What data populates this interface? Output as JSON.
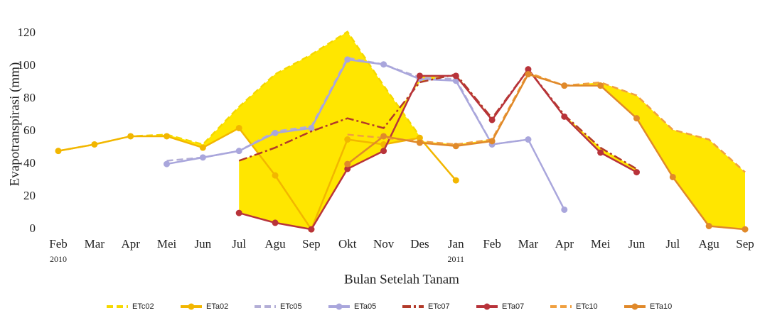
{
  "chart_data": {
    "type": "line",
    "y_label": "Evapotranspirasi (mm)",
    "x_label": "Bulan Setelah Tanam",
    "categories": [
      "Feb",
      "Mar",
      "Apr",
      "Mei",
      "Jun",
      "Jul",
      "Agu",
      "Sep",
      "Okt",
      "Nov",
      "Des",
      "Jan",
      "Feb",
      "Mar",
      "Apr",
      "Mei",
      "Jun",
      "Jul",
      "Agu",
      "Sep"
    ],
    "category_sublabels": [
      "2010",
      null,
      null,
      null,
      null,
      null,
      null,
      null,
      null,
      null,
      null,
      "2011",
      null,
      null,
      null,
      null,
      null,
      null,
      null,
      null
    ],
    "ylim": [
      -3,
      130
    ],
    "yticks": [
      0,
      20,
      40,
      60,
      80,
      100,
      120
    ],
    "grid": false,
    "legend": "bottom",
    "series": [
      {
        "name": "ETc02",
        "color": "#f5d800",
        "dash": "dashed",
        "marker": false,
        "fill": "#ffe600",
        "values": [
          48,
          52,
          57,
          58,
          52,
          75,
          95,
          107,
          121,
          88,
          57,
          null,
          null,
          null,
          null,
          null,
          null,
          null,
          null,
          null
        ]
      },
      {
        "name": "ETa02",
        "color": "#f2b600",
        "dash": "solid",
        "marker": true,
        "values": [
          48,
          52,
          57,
          57,
          50,
          62,
          33,
          0,
          55,
          52,
          56,
          30,
          null,
          null,
          null,
          null,
          null,
          null,
          null,
          null
        ]
      },
      {
        "name": "ETc05",
        "color": "#b3aed6",
        "dash": "dashed",
        "marker": false,
        "values": [
          null,
          null,
          null,
          42,
          44,
          48,
          60,
          63,
          105,
          101,
          93,
          92,
          52,
          55,
          null,
          null,
          null,
          null,
          null,
          null
        ]
      },
      {
        "name": "ETa05",
        "color": "#a9a6dc",
        "dash": "solid",
        "marker": true,
        "values": [
          null,
          null,
          null,
          40,
          44,
          48,
          59,
          62,
          104,
          101,
          92,
          91,
          52,
          55,
          12,
          null,
          null,
          null,
          null,
          null
        ]
      },
      {
        "name": "ETc07",
        "color": "#b23a2a",
        "dash": "dashdot",
        "marker": false,
        "fill": "#ffe600",
        "values": [
          null,
          null,
          null,
          null,
          null,
          42,
          50,
          60,
          68,
          62,
          90,
          95,
          68,
          98,
          70,
          50,
          37,
          null,
          null,
          null
        ]
      },
      {
        "name": "ETa07",
        "color": "#b8333a",
        "dash": "solid",
        "marker": true,
        "values": [
          null,
          null,
          null,
          null,
          null,
          10,
          4,
          0,
          37,
          48,
          94,
          94,
          67,
          98,
          69,
          47,
          35,
          null,
          null,
          null
        ]
      },
      {
        "name": "ETc10",
        "color": "#f0a040",
        "dash": "dashed",
        "marker": false,
        "fill": "#ffe600",
        "values": [
          null,
          null,
          null,
          null,
          null,
          null,
          null,
          null,
          58,
          56,
          54,
          52,
          55,
          96,
          88,
          90,
          82,
          61,
          55,
          35
        ]
      },
      {
        "name": "ETa10",
        "color": "#e0892a",
        "dash": "solid",
        "marker": true,
        "values": [
          null,
          null,
          null,
          null,
          null,
          null,
          null,
          null,
          40,
          57,
          53,
          51,
          54,
          95,
          88,
          88,
          68,
          32,
          2,
          0
        ]
      }
    ]
  }
}
